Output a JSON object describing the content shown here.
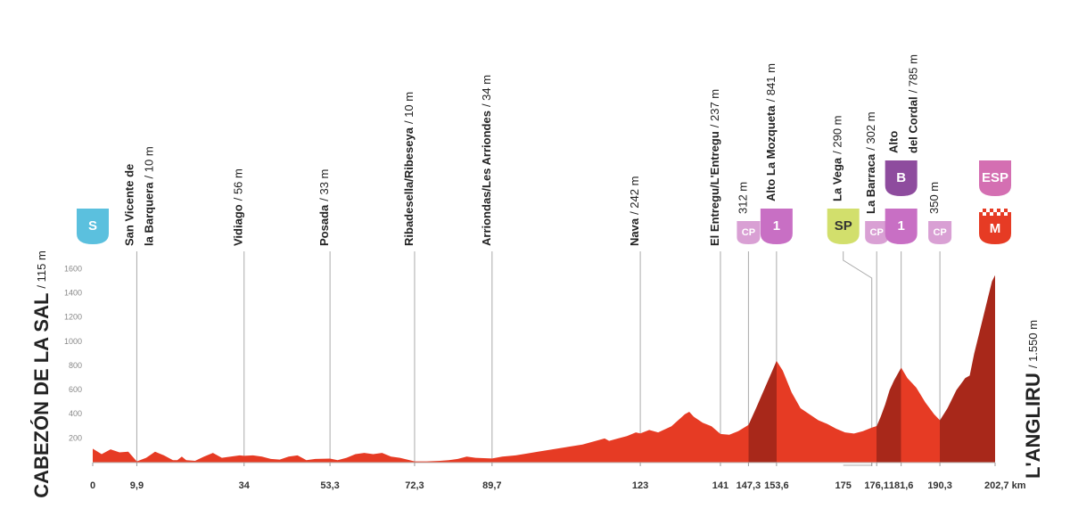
{
  "chart_data": {
    "type": "area",
    "x": [
      0,
      2,
      4,
      6,
      8,
      9.9,
      12,
      14,
      16,
      18,
      19,
      20,
      21,
      23,
      25,
      27,
      29,
      31,
      33,
      34,
      36,
      38,
      40,
      42,
      44,
      46,
      48,
      50,
      53.3,
      55,
      57,
      59,
      61,
      63,
      65,
      67,
      69,
      72.3,
      75,
      78,
      80,
      82,
      84,
      86,
      89.7,
      92,
      95,
      100,
      105,
      110,
      113,
      115,
      116,
      118,
      120,
      122,
      123,
      125,
      127,
      130,
      133,
      134,
      135,
      137,
      139,
      141,
      143,
      145,
      147.3,
      149,
      151,
      153,
      153.6,
      155,
      157,
      159,
      161,
      163,
      165,
      167,
      169,
      171,
      173,
      175,
      176.1,
      177,
      178,
      179,
      180,
      181.6,
      183,
      185,
      187,
      189,
      190.3,
      192,
      194,
      196,
      197,
      198,
      199,
      200,
      201,
      202,
      202.7
    ],
    "values": [
      115,
      70,
      110,
      85,
      90,
      10,
      40,
      90,
      60,
      20,
      20,
      50,
      20,
      15,
      50,
      80,
      40,
      50,
      60,
      56,
      60,
      50,
      30,
      25,
      50,
      60,
      20,
      30,
      33,
      20,
      40,
      70,
      80,
      70,
      80,
      50,
      40,
      10,
      10,
      15,
      20,
      30,
      50,
      40,
      34,
      50,
      60,
      90,
      120,
      150,
      180,
      200,
      180,
      200,
      220,
      250,
      242,
      270,
      250,
      300,
      400,
      420,
      380,
      330,
      300,
      237,
      230,
      260,
      312,
      450,
      620,
      790,
      841,
      760,
      580,
      450,
      400,
      350,
      320,
      280,
      250,
      240,
      260,
      290,
      302,
      380,
      480,
      600,
      680,
      785,
      700,
      620,
      500,
      400,
      350,
      450,
      600,
      700,
      720,
      900,
      1050,
      1200,
      1350,
      1500,
      1550
    ],
    "xlim": [
      0,
      202.7
    ],
    "ylim": [
      0,
      1600
    ],
    "yticks": [
      200,
      400,
      600,
      800,
      1000,
      1200,
      1400,
      1600
    ],
    "xticks": [
      0,
      {
        "value": 9.9,
        "label": "9,9"
      },
      34,
      {
        "value": 53.3,
        "label": "53,3"
      },
      {
        "value": 72.3,
        "label": "72,3"
      },
      {
        "value": 89.7,
        "label": "89,7"
      },
      123,
      141,
      {
        "value": 147.3,
        "label": "147,3"
      },
      {
        "value": 153.6,
        "label": "153,6"
      },
      175,
      {
        "value": 176.1,
        "label": "176,1"
      },
      {
        "value": 181.6,
        "label": "181,6"
      },
      {
        "value": 190.3,
        "label": "190,3"
      },
      {
        "value": 202.7,
        "label": "202,7 km"
      }
    ],
    "color": "#e63b24",
    "climb_color": "#a8281a",
    "start": {
      "name": "CABEZÓN DE LA SAL",
      "altitude": "/ 115 m"
    },
    "finish": {
      "name": "L'ANGLIRU",
      "altitude": "/ 1.550 m"
    },
    "waypoints": [
      {
        "km": 0,
        "names": [],
        "badges": [
          {
            "text": "S",
            "color": "#5bc0de",
            "size": "large"
          }
        ]
      },
      {
        "km": 9.9,
        "names": [
          "San Vicente de",
          "la Barquera"
        ],
        "altitude": "/ 10 m",
        "badges": []
      },
      {
        "km": 34,
        "names": [
          "Vidiago"
        ],
        "altitude": "/ 56 m",
        "badges": []
      },
      {
        "km": 53.3,
        "names": [
          "Posada"
        ],
        "altitude": "/ 33 m",
        "badges": []
      },
      {
        "km": 72.3,
        "names": [
          "Ribadesella/Ribeseya"
        ],
        "altitude": "/ 10 m",
        "badges": []
      },
      {
        "km": 89.7,
        "names": [
          "Arriondas/Les Arriondes"
        ],
        "altitude": "/ 34 m",
        "badges": []
      },
      {
        "km": 123,
        "names": [
          "Nava"
        ],
        "altitude": "/ 242 m",
        "badges": []
      },
      {
        "km": 141,
        "names": [
          "El Entregu/L'Entregu"
        ],
        "altitude": "/ 237 m",
        "badges": []
      },
      {
        "km": 147.3,
        "names": [],
        "altitude": "312 m",
        "badges": [
          {
            "text": "CP",
            "color": "#d9a0d4",
            "size": "small"
          }
        ]
      },
      {
        "km": 153.6,
        "names": [
          "Alto La Mozqueta"
        ],
        "altitude": "/ 841 m",
        "climb_summit": true,
        "badges": [
          {
            "text": "1",
            "color": "#c86fc4",
            "size": "large"
          }
        ]
      },
      {
        "km": 175,
        "names": [
          "La Vega"
        ],
        "altitude": "/ 290 m",
        "badges": [
          {
            "text": "SP",
            "color": "#d2df6c",
            "text_color": "#333333",
            "size": "large"
          }
        ]
      },
      {
        "km": 176.1,
        "names": [
          "La Barraca"
        ],
        "altitude": "/ 302 m",
        "badges": [
          {
            "text": "CP",
            "color": "#d9a0d4",
            "size": "small"
          }
        ]
      },
      {
        "km": 181.6,
        "names": [
          "Alto",
          "del Cordal"
        ],
        "altitude": "/ 785 m",
        "climb_summit": true,
        "badges": [
          {
            "text": "1",
            "color": "#c86fc4",
            "size": "large"
          },
          {
            "text": "B",
            "color": "#8e4c9e",
            "size": "large"
          }
        ]
      },
      {
        "km": 190.3,
        "names": [],
        "altitude": "350 m",
        "badges": [
          {
            "text": "CP",
            "color": "#d9a0d4",
            "size": "small"
          }
        ]
      },
      {
        "km": 202.7,
        "names": [],
        "climb_summit": true,
        "badges": [
          {
            "text": "M",
            "color": "#e63b24",
            "size": "large",
            "checkered": true
          },
          {
            "text": "ESP",
            "color": "#d46fb2",
            "size": "large"
          }
        ]
      }
    ]
  }
}
